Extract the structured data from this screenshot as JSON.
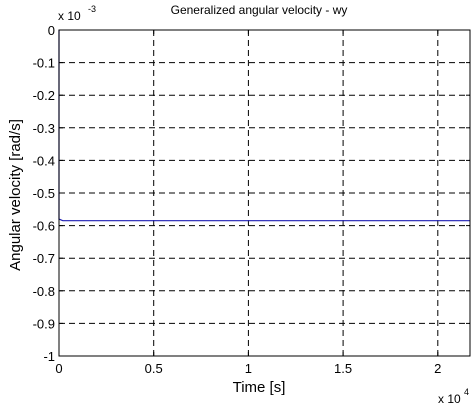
{
  "chart_data": {
    "type": "line",
    "title": "Generalized angular velocity - wy",
    "xlabel": "Time [s]",
    "ylabel": "Angular velocity [rad/s]",
    "xlim": [
      0,
      21700
    ],
    "ylim": [
      -0.001,
      0
    ],
    "x_ticks": [
      0,
      5000,
      10000,
      15000,
      20000
    ],
    "x_tick_labels": [
      "0",
      "0.5",
      "1",
      "1.5",
      "2"
    ],
    "y_ticks": [
      0,
      -0.0001,
      -0.0002,
      -0.0003,
      -0.0004,
      -0.0005,
      -0.0006,
      -0.0007,
      -0.0008,
      -0.0009,
      -0.001
    ],
    "y_tick_labels": [
      "0",
      "-0.1",
      "-0.2",
      "-0.3",
      "-0.4",
      "-0.5",
      "-0.6",
      "-0.7",
      "-0.8",
      "-0.9",
      "-1"
    ],
    "x_multiplier": {
      "base": "x 10",
      "exp": "4"
    },
    "y_multiplier": {
      "base": "x 10",
      "exp": "-3"
    },
    "grid": true,
    "grid_style": "dashed",
    "series": [
      {
        "color": "#1f1fb4",
        "x": [
          0,
          0,
          200,
          21700
        ],
        "y": [
          0,
          -0.00058,
          -0.000585,
          -0.000585
        ]
      }
    ]
  }
}
